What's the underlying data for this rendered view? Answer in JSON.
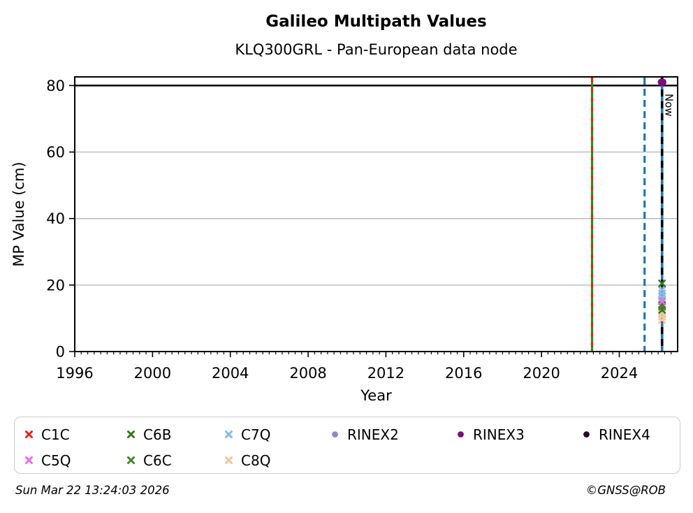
{
  "figure": {
    "title": "Galileo Multipath Values",
    "subtitle": "KLQ300GRL - Pan-European data node",
    "footer_left": "Sun Mar 22 13:24:03 2026",
    "footer_right": "©GNSS@ROB"
  },
  "chart_data": {
    "type": "scatter",
    "title": "Galileo Multipath Values",
    "subtitle": "KLQ300GRL - Pan-European data node",
    "xlabel": "Year",
    "ylabel": "MP Value (cm)",
    "xlim": [
      1996,
      2027
    ],
    "ylim": [
      0,
      82.6
    ],
    "xticks": [
      1996,
      2000,
      2004,
      2008,
      2012,
      2016,
      2020,
      2024
    ],
    "yticks": [
      0,
      20,
      40,
      60,
      80
    ],
    "grid_y": [
      20,
      40,
      60
    ],
    "grid_color": "#b3b3b3",
    "background": "#ffffff",
    "threshold_line": {
      "y": 80,
      "color": "#000000"
    },
    "vlines": [
      {
        "x": 2022.6,
        "base_color": "#0f9b0f",
        "base_dash": null,
        "overlay_color": "#d62a1e",
        "overlay_dash": [
          7,
          7
        ],
        "width": 3.2,
        "label": null
      },
      {
        "x": 2025.3,
        "base_color": "#1f77b4",
        "base_dash": [
          10,
          6
        ],
        "overlay_color": null,
        "overlay_dash": null,
        "width": 3.2,
        "label": null
      },
      {
        "x": 2026.2,
        "base_color": "#1f77b4",
        "base_dash": null,
        "overlay_color": "#000000",
        "overlay_dash": [
          10,
          7
        ],
        "width": 3.6,
        "label": "Now"
      }
    ],
    "now_label": "Now",
    "series": [
      {
        "label": "C7Q",
        "marker": "x",
        "color": "#88b7e3",
        "points": [
          {
            "x": 2026.2,
            "y": 18.5
          },
          {
            "x": 2026.2,
            "y": 17.5
          },
          {
            "x": 2026.2,
            "y": 16.5
          },
          {
            "x": 2026.2,
            "y": 15.5
          }
        ]
      },
      {
        "label": "C8Q",
        "marker": "x",
        "color": "#f3c39d",
        "points": [
          {
            "x": 2026.2,
            "y": 11.5
          },
          {
            "x": 2026.2,
            "y": 10.5
          },
          {
            "x": 2026.2,
            "y": 9.5
          }
        ]
      },
      {
        "label": "C1C",
        "marker": "x",
        "color": "#e32219",
        "points": []
      },
      {
        "label": "C6B",
        "marker": "x",
        "color": "#38761d",
        "points": [
          {
            "x": 2026.2,
            "y": 20.5
          },
          {
            "x": 2026.2,
            "y": 14
          },
          {
            "x": 2026.2,
            "y": 12.5
          }
        ]
      },
      {
        "label": "C6C",
        "marker": "x",
        "color": "#41862a",
        "points": [
          {
            "x": 2026.2,
            "y": 13.5
          }
        ]
      },
      {
        "label": "C5Q",
        "marker": "x",
        "color": "#ec6bec",
        "points": [
          {
            "x": 2026.2,
            "y": 15
          }
        ]
      },
      {
        "label": "RINEX2",
        "marker": "circle",
        "color": "#9189c9",
        "points": []
      },
      {
        "label": "RINEX3",
        "marker": "circle",
        "color": "#7d0b7d",
        "points": [
          {
            "x": 2026.2,
            "y": 81
          }
        ]
      },
      {
        "label": "RINEX4",
        "marker": "circle",
        "color": "#250a33",
        "points": []
      }
    ],
    "legend": {
      "rows": [
        [
          "C1C",
          "C6B",
          "C7Q",
          "RINEX2",
          "RINEX3",
          "RINEX4"
        ],
        [
          "C5Q",
          "C6C",
          "C8Q"
        ]
      ]
    }
  }
}
